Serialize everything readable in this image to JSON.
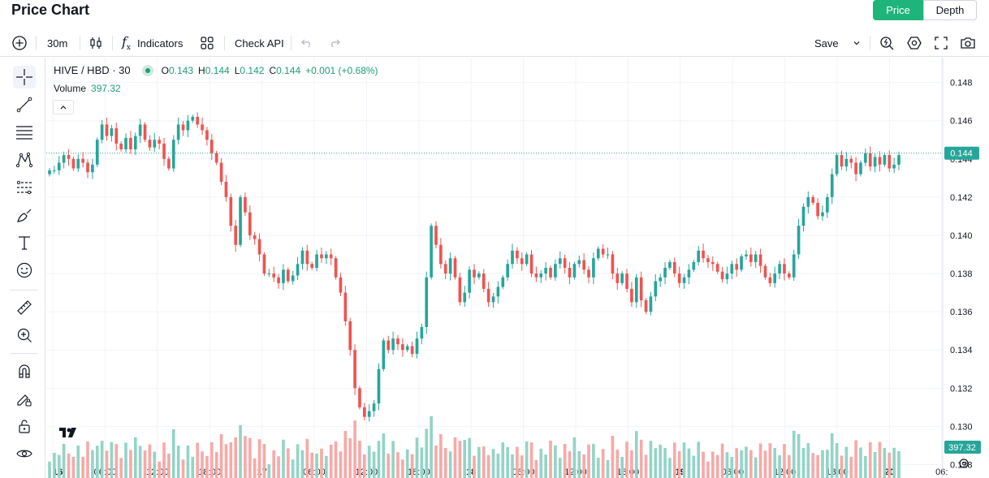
{
  "header": {
    "title": "Price Chart",
    "tabs": [
      {
        "label": "Price"
      },
      {
        "label": "Depth"
      }
    ]
  },
  "toolbar": {
    "interval": "30m",
    "indicators": "Indicators",
    "check_api": "Check API",
    "save": "Save"
  },
  "legend": {
    "symbol": "HIVE / HBD · 30",
    "o_label": "O",
    "o": "0.143",
    "h_label": "H",
    "h": "0.144",
    "l_label": "L",
    "l": "0.142",
    "c_label": "C",
    "c": "0.144",
    "change": "+0.001 (+0.68%)",
    "volume_label": "Volume",
    "volume": "397.32"
  },
  "colors": {
    "up": "#26a69a",
    "down": "#ef5350",
    "accent": "#1fb47a",
    "vol_up": "#93d4c6",
    "vol_down": "#f7a9a7"
  },
  "chart_data": {
    "type": "candlestick",
    "title": "HIVE / HBD · 30",
    "interval": "30m",
    "price_axis_ticks": [
      "0.148",
      "0.146",
      "0.144",
      "0.142",
      "0.140",
      "0.138",
      "0.136",
      "0.134",
      "0.132",
      "0.130",
      "0.128"
    ],
    "ylim": [
      0.1273,
      0.1493
    ],
    "time_axis_ticks": [
      "16",
      "06:00",
      "12:00",
      "18:00",
      "17",
      "06:00",
      "12:00",
      "18:00",
      "18",
      "06:00",
      "12:00",
      "18:00",
      "19",
      "06:00",
      "12:00",
      "18:00",
      "20",
      "06:"
    ],
    "last_price_label": "0.144",
    "last_volume_label": "397.32",
    "close_series": [
      0.1434,
      0.1434,
      0.1438,
      0.1442,
      0.144,
      0.1435,
      0.144,
      0.1438,
      0.1433,
      0.1437,
      0.145,
      0.1458,
      0.1452,
      0.1456,
      0.1448,
      0.1445,
      0.1451,
      0.1445,
      0.1452,
      0.1458,
      0.145,
      0.1446,
      0.145,
      0.1448,
      0.144,
      0.1435,
      0.145,
      0.1458,
      0.1455,
      0.146,
      0.1462,
      0.1458,
      0.1455,
      0.145,
      0.1443,
      0.1438,
      0.1428,
      0.142,
      0.1405,
      0.1395,
      0.142,
      0.1412,
      0.14,
      0.1398,
      0.139,
      0.138,
      0.138,
      0.1378,
      0.1375,
      0.1382,
      0.1376,
      0.1379,
      0.1385,
      0.1392,
      0.1385,
      0.1383,
      0.139,
      0.1388,
      0.139,
      0.1388,
      0.1378,
      0.137,
      0.1355,
      0.134,
      0.132,
      0.131,
      0.1305,
      0.1308,
      0.1312,
      0.133,
      0.1345,
      0.134,
      0.1346,
      0.1343,
      0.134,
      0.1342,
      0.1338,
      0.1346,
      0.1352,
      0.1378,
      0.1405,
      0.1395,
      0.1385,
      0.138,
      0.1388,
      0.1378,
      0.1365,
      0.137,
      0.1382,
      0.1378,
      0.138,
      0.1372,
      0.1365,
      0.1368,
      0.1373,
      0.1378,
      0.1385,
      0.1392,
      0.1388,
      0.1385,
      0.139,
      0.138,
      0.1378,
      0.138,
      0.1383,
      0.1378,
      0.1385,
      0.1388,
      0.1383,
      0.1378,
      0.1385,
      0.1387,
      0.1382,
      0.1378,
      0.1388,
      0.1393,
      0.139,
      0.139,
      0.138,
      0.1375,
      0.138,
      0.1372,
      0.1365,
      0.1378,
      0.1366,
      0.136,
      0.1368,
      0.1376,
      0.1378,
      0.1383,
      0.1386,
      0.138,
      0.1375,
      0.1378,
      0.1382,
      0.1386,
      0.1392,
      0.1388,
      0.1386,
      0.1385,
      0.1381,
      0.1377,
      0.138,
      0.1385,
      0.1382,
      0.1389,
      0.139,
      0.1386,
      0.139,
      0.1384,
      0.1378,
      0.1375,
      0.138,
      0.1385,
      0.138,
      0.1378,
      0.139,
      0.1405,
      0.1415,
      0.142,
      0.1417,
      0.141,
      0.1412,
      0.142,
      0.1432,
      0.1442,
      0.1436,
      0.144,
      0.1438,
      0.1432,
      0.1438,
      0.1443,
      0.1436,
      0.1441,
      0.1437,
      0.1442,
      0.1435,
      0.1437,
      0.1442
    ]
  }
}
